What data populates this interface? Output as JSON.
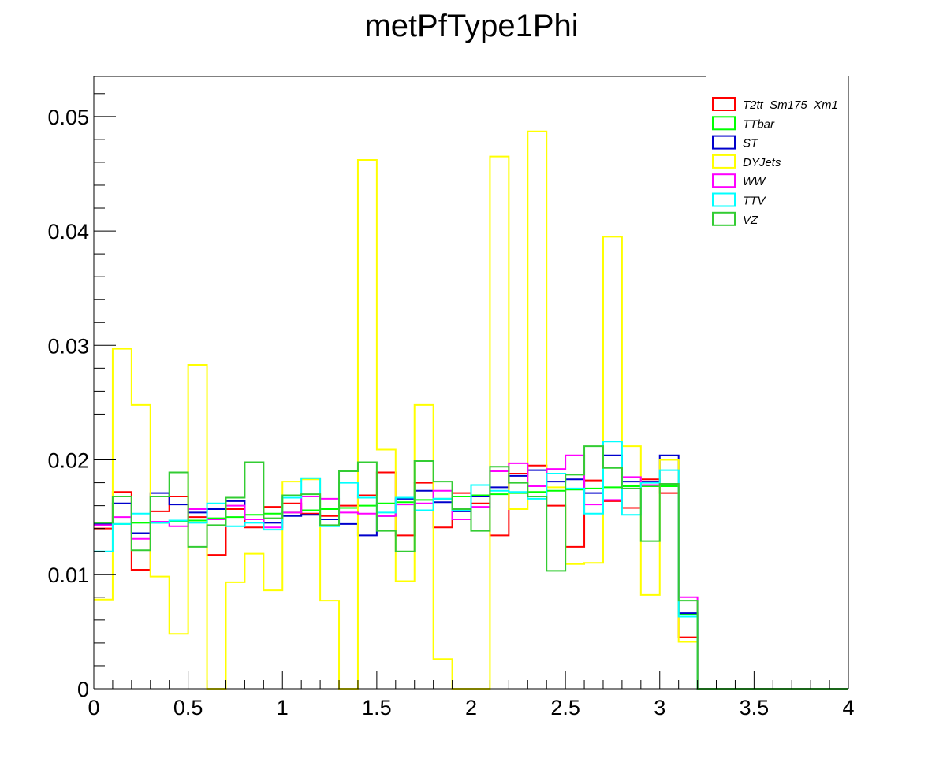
{
  "chart_data": {
    "type": "line",
    "title": "metPfType1Phi",
    "xlabel": "",
    "ylabel": "",
    "xlim": [
      0,
      4
    ],
    "ylim": [
      0,
      0.0535
    ],
    "bin_width": 0.1,
    "x": [
      0.0,
      0.1,
      0.2,
      0.3,
      0.4,
      0.5,
      0.6,
      0.7,
      0.8,
      0.9,
      1.0,
      1.1,
      1.2,
      1.3,
      1.4,
      1.5,
      1.6,
      1.7,
      1.8,
      1.9,
      2.0,
      2.1,
      2.2,
      2.3,
      2.4,
      2.5,
      2.6,
      2.7,
      2.8,
      2.9,
      3.0,
      3.1,
      3.2,
      3.3,
      3.4,
      3.5,
      3.6,
      3.7,
      3.8,
      3.9
    ],
    "x_ticks": [
      {
        "value": 0,
        "label": "0"
      },
      {
        "value": 0.5,
        "label": "0.5"
      },
      {
        "value": 1,
        "label": "1"
      },
      {
        "value": 1.5,
        "label": "1.5"
      },
      {
        "value": 2,
        "label": "2"
      },
      {
        "value": 2.5,
        "label": "2.5"
      },
      {
        "value": 3,
        "label": "3"
      },
      {
        "value": 3.5,
        "label": "3.5"
      },
      {
        "value": 4,
        "label": "4"
      }
    ],
    "y_ticks": [
      {
        "value": 0,
        "label": "0"
      },
      {
        "value": 0.01,
        "label": "0.01"
      },
      {
        "value": 0.02,
        "label": "0.02"
      },
      {
        "value": 0.03,
        "label": "0.03"
      },
      {
        "value": 0.04,
        "label": "0.04"
      },
      {
        "value": 0.05,
        "label": "0.05"
      }
    ],
    "grid": false,
    "legend_position": "top-right",
    "series": [
      {
        "name": "T2tt_Sm175_Xm1",
        "color": "#ff0000",
        "values": [
          0.014,
          0.0172,
          0.0104,
          0.0155,
          0.0168,
          0.015,
          0.0117,
          0.0157,
          0.0141,
          0.0159,
          0.0162,
          0.0153,
          0.0151,
          0.016,
          0.0169,
          0.0189,
          0.0134,
          0.018,
          0.0141,
          0.0171,
          0.0162,
          0.0134,
          0.0188,
          0.0195,
          0.016,
          0.0124,
          0.0182,
          0.0164,
          0.0158,
          0.0183,
          0.0171,
          0.0045,
          0,
          0,
          0,
          0,
          0,
          0,
          0,
          0
        ]
      },
      {
        "name": "TTbar",
        "color": "#00ff00",
        "values": [
          0.0143,
          0.0144,
          0.0145,
          0.0145,
          0.0146,
          0.0147,
          0.0149,
          0.015,
          0.0152,
          0.0153,
          0.0154,
          0.0156,
          0.0157,
          0.0158,
          0.016,
          0.0162,
          0.0163,
          0.0165,
          0.0166,
          0.0168,
          0.0169,
          0.017,
          0.0171,
          0.0172,
          0.0173,
          0.0174,
          0.0175,
          0.0176,
          0.0177,
          0.0177,
          0.0177,
          0.0065,
          0,
          0,
          0,
          0,
          0,
          0,
          0,
          0
        ]
      },
      {
        "name": "ST",
        "color": "#0000cc",
        "values": [
          0.0144,
          0.0162,
          0.0136,
          0.0171,
          0.0161,
          0.0154,
          0.0157,
          0.0164,
          0.0148,
          0.0145,
          0.0151,
          0.0152,
          0.0148,
          0.0144,
          0.0134,
          0.0151,
          0.0166,
          0.0173,
          0.0163,
          0.0155,
          0.0168,
          0.0176,
          0.0186,
          0.0191,
          0.0181,
          0.0183,
          0.0171,
          0.0204,
          0.0181,
          0.0181,
          0.0204,
          0.0066,
          0,
          0,
          0,
          0,
          0,
          0,
          0,
          0
        ]
      },
      {
        "name": "DYJets",
        "color": "#ffff00",
        "values": [
          0.0078,
          0.0297,
          0.0248,
          0.0098,
          0.0048,
          0.0283,
          0.0,
          0.0093,
          0.0118,
          0.0086,
          0.0181,
          0.0183,
          0.0077,
          0.0,
          0.0462,
          0.0209,
          0.0094,
          0.0248,
          0.0026,
          0.0,
          0.0,
          0.0465,
          0.0157,
          0.0487,
          0.0176,
          0.0109,
          0.011,
          0.0395,
          0.0212,
          0.0082,
          0.02,
          0.0041,
          0,
          0,
          0,
          0,
          0,
          0,
          0,
          0
        ]
      },
      {
        "name": "WW",
        "color": "#ff00ff",
        "values": [
          0.0143,
          0.015,
          0.0131,
          0.0146,
          0.0142,
          0.0157,
          0.0148,
          0.016,
          0.0148,
          0.0141,
          0.0154,
          0.0168,
          0.0166,
          0.0154,
          0.0153,
          0.0151,
          0.0161,
          0.0162,
          0.0173,
          0.0148,
          0.0159,
          0.019,
          0.0197,
          0.0177,
          0.0192,
          0.0204,
          0.0161,
          0.0165,
          0.0185,
          0.0178,
          0.0179,
          0.008,
          0,
          0,
          0,
          0,
          0,
          0,
          0,
          0
        ]
      },
      {
        "name": "TTV",
        "color": "#00ffff",
        "values": [
          0.012,
          0.0144,
          0.0153,
          0.0145,
          0.0147,
          0.0145,
          0.0162,
          0.0142,
          0.0145,
          0.0139,
          0.0167,
          0.0184,
          0.0142,
          0.018,
          0.0167,
          0.0154,
          0.0167,
          0.0156,
          0.0166,
          0.0156,
          0.0178,
          0.0173,
          0.0172,
          0.0166,
          0.0188,
          0.0175,
          0.0153,
          0.0216,
          0.0152,
          0.018,
          0.0191,
          0.0063,
          0,
          0,
          0,
          0,
          0,
          0,
          0,
          0
        ]
      },
      {
        "name": "VZ",
        "color": "#33cc33",
        "values": [
          0.0145,
          0.0168,
          0.0121,
          0.0168,
          0.0189,
          0.0124,
          0.0143,
          0.0167,
          0.0198,
          0.0149,
          0.0169,
          0.017,
          0.0143,
          0.019,
          0.0198,
          0.0138,
          0.012,
          0.0199,
          0.0181,
          0.0157,
          0.0138,
          0.0194,
          0.018,
          0.0168,
          0.0103,
          0.0187,
          0.0212,
          0.0193,
          0.0175,
          0.0129,
          0.0179,
          0.0077,
          0,
          0,
          0,
          0,
          0,
          0,
          0,
          0
        ]
      }
    ]
  }
}
